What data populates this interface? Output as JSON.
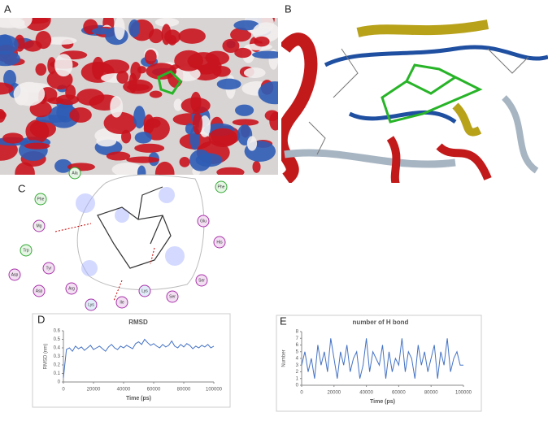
{
  "panels": {
    "a": "A",
    "b": "B",
    "c": "C",
    "d": "D",
    "e": "E"
  },
  "residues": [
    "Ala",
    "Phe",
    "Phe",
    "Glu",
    "Mg",
    "His",
    "Trp",
    "Tyr",
    "Asp",
    "Asp",
    "Arg",
    "Lys",
    "Ile",
    "Ser",
    "Lys",
    "Ser"
  ],
  "chart_data": [
    {
      "type": "line",
      "title": "RMSD",
      "x_label": "Time (ps)",
      "y_label": "RMSD (nm)",
      "xlim": [
        0,
        100000
      ],
      "ylim": [
        0,
        0.6
      ],
      "xticks": [
        0,
        20000,
        40000,
        60000,
        80000,
        100000
      ],
      "yticks": [
        0,
        0.1,
        0.2,
        0.3,
        0.4,
        0.5,
        0.6
      ],
      "x": [
        0,
        2000,
        4000,
        6000,
        8000,
        10000,
        12000,
        14000,
        16000,
        18000,
        20000,
        22000,
        24000,
        26000,
        28000,
        30000,
        32000,
        34000,
        36000,
        38000,
        40000,
        42000,
        44000,
        46000,
        48000,
        50000,
        52000,
        54000,
        56000,
        58000,
        60000,
        62000,
        64000,
        66000,
        68000,
        70000,
        72000,
        74000,
        76000,
        78000,
        80000,
        82000,
        84000,
        86000,
        88000,
        90000,
        92000,
        94000,
        96000,
        98000,
        100000
      ],
      "series": [
        {
          "color": "#4472c4",
          "values": [
            0.05,
            0.38,
            0.4,
            0.36,
            0.42,
            0.39,
            0.41,
            0.37,
            0.4,
            0.43,
            0.38,
            0.4,
            0.42,
            0.39,
            0.36,
            0.41,
            0.44,
            0.4,
            0.38,
            0.42,
            0.4,
            0.43,
            0.41,
            0.39,
            0.45,
            0.47,
            0.44,
            0.5,
            0.46,
            0.43,
            0.45,
            0.42,
            0.4,
            0.44,
            0.41,
            0.43,
            0.48,
            0.42,
            0.4,
            0.44,
            0.41,
            0.45,
            0.43,
            0.39,
            0.42,
            0.4,
            0.43,
            0.41,
            0.44,
            0.4,
            0.42
          ]
        }
      ]
    },
    {
      "type": "line",
      "title": "number of H bond",
      "x_label": "Time (ps)",
      "y_label": "Number",
      "xlim": [
        0,
        100000
      ],
      "ylim": [
        0,
        8
      ],
      "xticks": [
        0,
        20000,
        40000,
        60000,
        80000,
        100000
      ],
      "yticks": [
        0,
        1,
        2,
        3,
        4,
        5,
        6,
        7,
        8
      ],
      "x": [
        0,
        2000,
        4000,
        6000,
        8000,
        10000,
        12000,
        14000,
        16000,
        18000,
        20000,
        22000,
        24000,
        26000,
        28000,
        30000,
        32000,
        34000,
        36000,
        38000,
        40000,
        42000,
        44000,
        46000,
        48000,
        50000,
        52000,
        54000,
        56000,
        58000,
        60000,
        62000,
        64000,
        66000,
        68000,
        70000,
        72000,
        74000,
        76000,
        78000,
        80000,
        82000,
        84000,
        86000,
        88000,
        90000,
        92000,
        94000,
        96000,
        98000,
        100000
      ],
      "series": [
        {
          "color": "#4472c4",
          "values": [
            3,
            5,
            2,
            4,
            1,
            6,
            3,
            5,
            2,
            7,
            4,
            1,
            5,
            3,
            6,
            2,
            4,
            5,
            1,
            3,
            7,
            2,
            5,
            4,
            3,
            6,
            1,
            5,
            2,
            4,
            3,
            7,
            2,
            5,
            4,
            1,
            6,
            3,
            5,
            2,
            4,
            6,
            1,
            5,
            3,
            7,
            2,
            4,
            5,
            3,
            3
          ]
        }
      ]
    }
  ]
}
